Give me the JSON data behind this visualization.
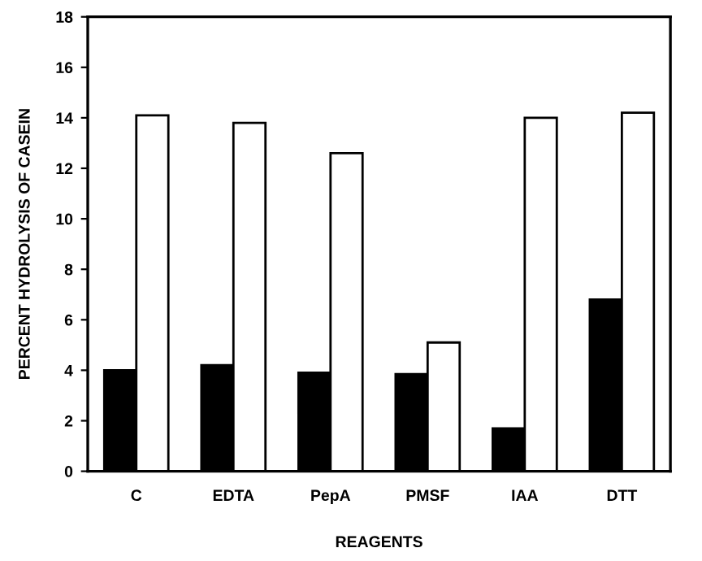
{
  "chart_data": {
    "type": "bar",
    "xlabel": "REAGENTS",
    "ylabel": "PERCENT HYDROLYSIS OF CASEIN",
    "categories": [
      "C",
      "EDTA",
      "PepA",
      "PMSF",
      "IAA",
      "DTT"
    ],
    "series": [
      {
        "color": "#000000",
        "values": [
          4.0,
          4.2,
          3.9,
          3.85,
          1.7,
          6.8
        ]
      },
      {
        "color": "#ffffff",
        "values": [
          14.1,
          13.8,
          12.6,
          5.1,
          14.0,
          14.2
        ]
      }
    ],
    "ylim": [
      0,
      18
    ],
    "yticks": [
      0,
      2,
      4,
      6,
      8,
      10,
      12,
      14,
      16,
      18
    ],
    "grid": false,
    "legend": false
  }
}
